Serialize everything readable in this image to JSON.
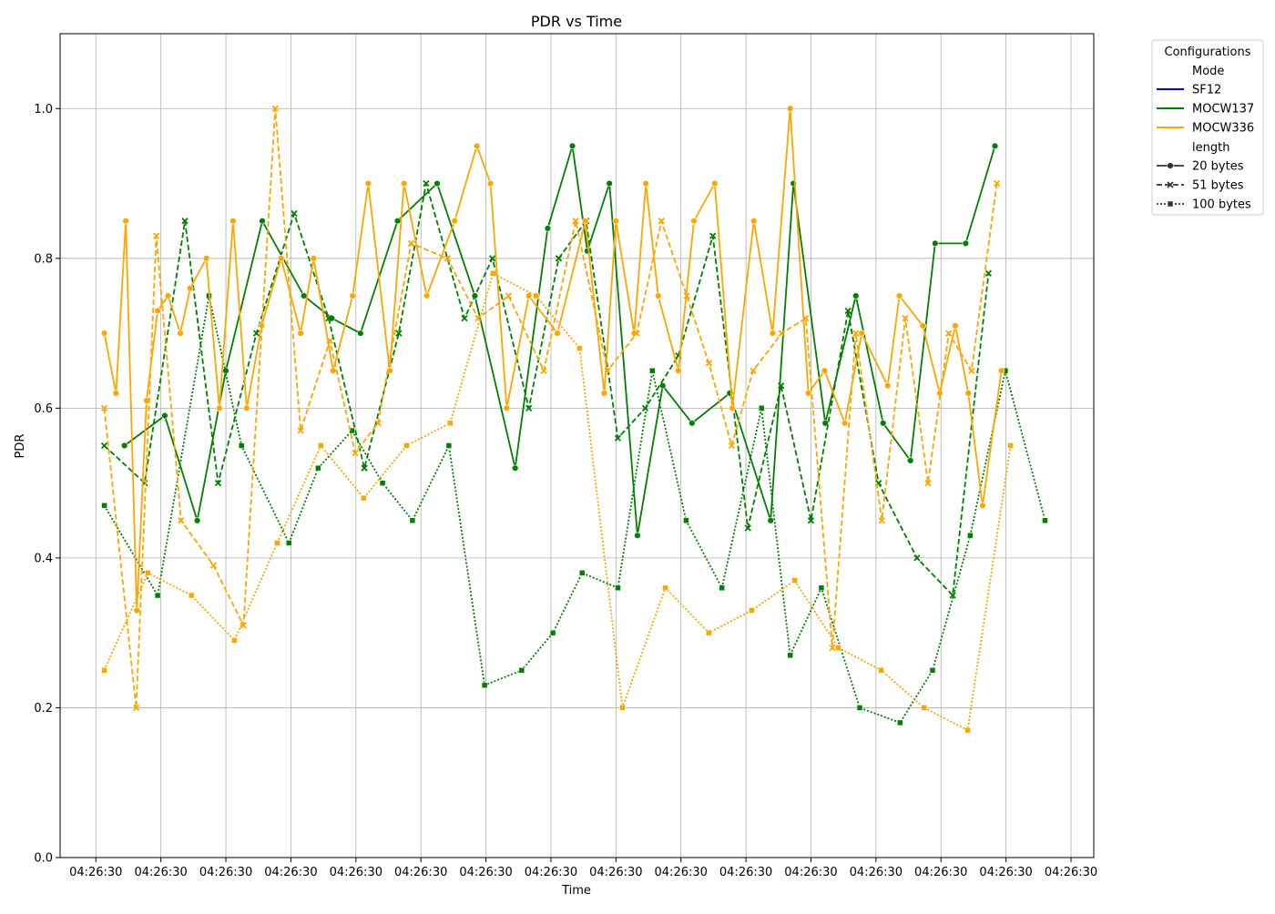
{
  "chart_data": {
    "type": "line",
    "title": "PDR vs Time",
    "xlabel": "Time",
    "ylabel": "PDR",
    "ylim": [
      0.0,
      1.1
    ],
    "xlim": [
      -0.55,
      15.35
    ],
    "x_ticks": [
      0,
      1,
      2,
      3,
      4,
      5,
      6,
      7,
      8,
      9,
      10,
      11,
      12,
      13,
      14,
      15
    ],
    "x_tick_labels": [
      "04:26:30",
      "04:26:30",
      "04:26:30",
      "04:26:30",
      "04:26:30",
      "04:26:30",
      "04:26:30",
      "04:26:30",
      "04:26:30",
      "04:26:30",
      "04:26:30",
      "04:26:30",
      "04:26:30",
      "04:26:30",
      "04:26:30",
      "04:26:30"
    ],
    "y_ticks": [
      0.0,
      0.2,
      0.4,
      0.6,
      0.8,
      1.0
    ],
    "y_tick_labels": [
      "0.0",
      "0.2",
      "0.4",
      "0.6",
      "0.8",
      "1.0"
    ],
    "grid": true,
    "legend": {
      "title": "Configurations",
      "placement": "outside-top-right",
      "hue_title": "Mode",
      "modes": [
        {
          "label": "SF12",
          "color": "#0000ff"
        },
        {
          "label": "MOCW137",
          "color": "#008000"
        },
        {
          "label": "MOCW336",
          "color": "#ffa500"
        }
      ],
      "style_title": "length",
      "styles": [
        {
          "label": "20 bytes",
          "dash": "solid",
          "marker": "circle"
        },
        {
          "label": "51 bytes",
          "dash": "dashed",
          "marker": "x"
        },
        {
          "label": "100 bytes",
          "dash": "dotted",
          "marker": "square"
        }
      ]
    },
    "series": [
      {
        "mode": "MOCW137",
        "length": "20 bytes",
        "color": "#008000",
        "dash": "solid",
        "marker": "circle",
        "x": [
          0.44,
          1.06,
          1.56,
          2.0,
          2.56,
          3.2,
          3.63,
          4.07,
          4.64,
          5.25,
          5.83,
          6.45,
          6.95,
          7.33,
          7.56,
          7.9,
          8.33,
          8.72,
          9.17,
          9.75,
          10.38,
          10.73,
          11.22,
          11.69,
          12.11,
          12.53,
          12.91,
          13.38,
          13.83
        ],
        "y": [
          0.55,
          0.59,
          0.45,
          0.65,
          0.85,
          0.75,
          0.72,
          0.7,
          0.85,
          0.9,
          0.75,
          0.52,
          0.84,
          0.95,
          0.81,
          0.9,
          0.43,
          0.63,
          0.58,
          0.62,
          0.45,
          0.9,
          0.58,
          0.75,
          0.58,
          0.53,
          0.82,
          0.82,
          0.95
        ]
      },
      {
        "mode": "MOCW137",
        "length": "51 bytes",
        "color": "#008000",
        "dash": "dashed",
        "marker": "x",
        "x": [
          0.13,
          0.75,
          1.37,
          1.88,
          2.47,
          3.05,
          3.58,
          4.13,
          4.66,
          5.08,
          5.67,
          6.1,
          6.66,
          7.12,
          7.54,
          8.03,
          8.45,
          8.96,
          9.49,
          10.03,
          10.54,
          11.0,
          11.57,
          12.04,
          12.63,
          13.18,
          13.73
        ],
        "y": [
          0.55,
          0.5,
          0.85,
          0.5,
          0.7,
          0.86,
          0.72,
          0.52,
          0.7,
          0.9,
          0.72,
          0.8,
          0.6,
          0.8,
          0.85,
          0.56,
          0.6,
          0.67,
          0.83,
          0.44,
          0.63,
          0.45,
          0.73,
          0.5,
          0.4,
          0.35,
          0.78
        ]
      },
      {
        "mode": "MOCW137",
        "length": "100 bytes",
        "color": "#008000",
        "dash": "dotted",
        "marker": "square",
        "x": [
          0.13,
          0.95,
          1.74,
          2.24,
          2.97,
          3.42,
          3.94,
          4.41,
          4.87,
          5.43,
          5.98,
          6.55,
          7.03,
          7.48,
          8.03,
          8.56,
          9.08,
          9.63,
          10.24,
          10.68,
          11.16,
          11.75,
          12.37,
          12.87,
          13.45,
          13.99,
          14.6
        ],
        "y": [
          0.47,
          0.35,
          0.75,
          0.55,
          0.42,
          0.52,
          0.57,
          0.5,
          0.45,
          0.55,
          0.23,
          0.25,
          0.3,
          0.38,
          0.36,
          0.65,
          0.45,
          0.36,
          0.6,
          0.27,
          0.36,
          0.2,
          0.18,
          0.25,
          0.43,
          0.65,
          0.45
        ]
      },
      {
        "mode": "MOCW336",
        "length": "20 bytes",
        "color": "#ffa500",
        "dash": "solid",
        "marker": "circle",
        "x": [
          0.13,
          0.31,
          0.46,
          0.63,
          0.78,
          0.95,
          1.11,
          1.3,
          1.45,
          1.7,
          1.9,
          2.11,
          2.32,
          2.55,
          2.85,
          3.15,
          3.35,
          3.65,
          3.95,
          4.19,
          4.52,
          4.74,
          5.09,
          5.52,
          5.86,
          6.07,
          6.32,
          6.66,
          7.1,
          7.53,
          7.82,
          8.0,
          8.28,
          8.46,
          8.65,
          8.96,
          9.2,
          9.52,
          9.79,
          10.12,
          10.41,
          10.68,
          10.96,
          11.21,
          11.52,
          11.78,
          12.18,
          12.36,
          12.72,
          12.98,
          13.22,
          13.42,
          13.64,
          13.93
        ],
        "y": [
          0.7,
          0.62,
          0.85,
          0.33,
          0.61,
          0.73,
          0.75,
          0.7,
          0.76,
          0.8,
          0.6,
          0.85,
          0.6,
          0.71,
          0.8,
          0.7,
          0.8,
          0.65,
          0.75,
          0.9,
          0.65,
          0.9,
          0.75,
          0.85,
          0.95,
          0.9,
          0.6,
          0.75,
          0.7,
          0.85,
          0.62,
          0.85,
          0.7,
          0.9,
          0.75,
          0.65,
          0.85,
          0.9,
          0.6,
          0.85,
          0.7,
          1.0,
          0.62,
          0.65,
          0.58,
          0.7,
          0.63,
          0.75,
          0.71,
          0.62,
          0.71,
          0.62,
          0.47,
          0.65
        ]
      },
      {
        "mode": "MOCW336",
        "length": "51 bytes",
        "color": "#ffa500",
        "dash": "dashed",
        "marker": "x",
        "x": [
          0.13,
          0.62,
          0.93,
          1.31,
          1.81,
          2.27,
          2.76,
          3.15,
          3.6,
          3.99,
          4.34,
          4.85,
          5.41,
          5.88,
          6.35,
          6.89,
          7.38,
          7.87,
          8.32,
          8.7,
          9.09,
          9.43,
          9.78,
          10.11,
          10.55,
          10.92,
          11.33,
          11.69,
          12.09,
          12.45,
          12.8,
          13.12,
          13.47,
          13.86
        ],
        "y": [
          0.6,
          0.2,
          0.83,
          0.45,
          0.39,
          0.31,
          1.0,
          0.57,
          0.69,
          0.54,
          0.58,
          0.82,
          0.8,
          0.72,
          0.75,
          0.65,
          0.85,
          0.65,
          0.7,
          0.85,
          0.75,
          0.66,
          0.55,
          0.65,
          0.7,
          0.72,
          0.28,
          0.7,
          0.45,
          0.72,
          0.5,
          0.7,
          0.65,
          0.9
        ]
      },
      {
        "mode": "MOCW336",
        "length": "100 bytes",
        "color": "#ffa500",
        "dash": "dotted",
        "marker": "square",
        "x": [
          0.13,
          0.8,
          1.47,
          2.13,
          2.79,
          3.46,
          4.12,
          4.78,
          5.45,
          6.11,
          6.77,
          7.44,
          8.1,
          8.76,
          9.43,
          10.09,
          10.75,
          11.42,
          12.08,
          12.74,
          13.41,
          14.07
        ],
        "y": [
          0.25,
          0.38,
          0.35,
          0.29,
          0.42,
          0.55,
          0.48,
          0.55,
          0.58,
          0.78,
          0.75,
          0.68,
          0.2,
          0.36,
          0.3,
          0.33,
          0.37,
          0.28,
          0.25,
          0.2,
          0.17,
          0.55
        ]
      }
    ]
  }
}
